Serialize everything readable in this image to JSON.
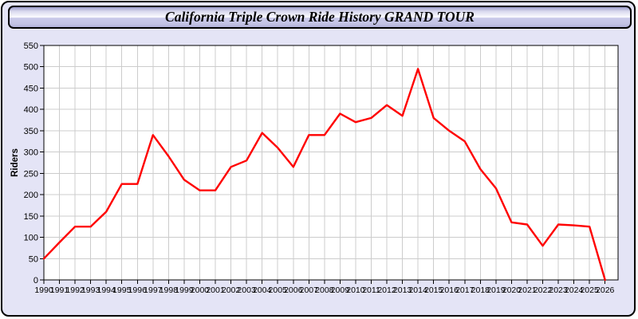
{
  "window": {
    "title": "California Triple Crown Ride History GRAND TOUR"
  },
  "colors": {
    "page_background": "#e4e4f6",
    "plot_background": "#ffffff",
    "grid": "#cccccc",
    "axis": "#000000",
    "line": "#ff0000",
    "text": "#000000"
  },
  "chart_data": {
    "type": "line",
    "title": "California Triple Crown Ride History GRAND TOUR",
    "xlabel": "",
    "ylabel": "Riders",
    "x": [
      1990,
      1991,
      1992,
      1993,
      1994,
      1995,
      1996,
      1997,
      1998,
      1999,
      2000,
      2001,
      2002,
      2003,
      2004,
      2005,
      2006,
      2007,
      2008,
      2009,
      2010,
      2011,
      2012,
      2013,
      2014,
      2015,
      2016,
      2017,
      2018,
      2019,
      2020,
      2021,
      2022,
      2023,
      2024,
      2025,
      2026
    ],
    "values": [
      50,
      88,
      125,
      125,
      160,
      225,
      225,
      340,
      290,
      235,
      210,
      210,
      265,
      280,
      345,
      310,
      265,
      340,
      340,
      390,
      370,
      380,
      410,
      385,
      495,
      380,
      350,
      325,
      260,
      215,
      135,
      130,
      80,
      130,
      128,
      125,
      0
    ],
    "ylim": [
      0,
      550
    ],
    "ytick_step": 50,
    "grid": true,
    "legend": "none",
    "line_color": "#ff0000"
  }
}
